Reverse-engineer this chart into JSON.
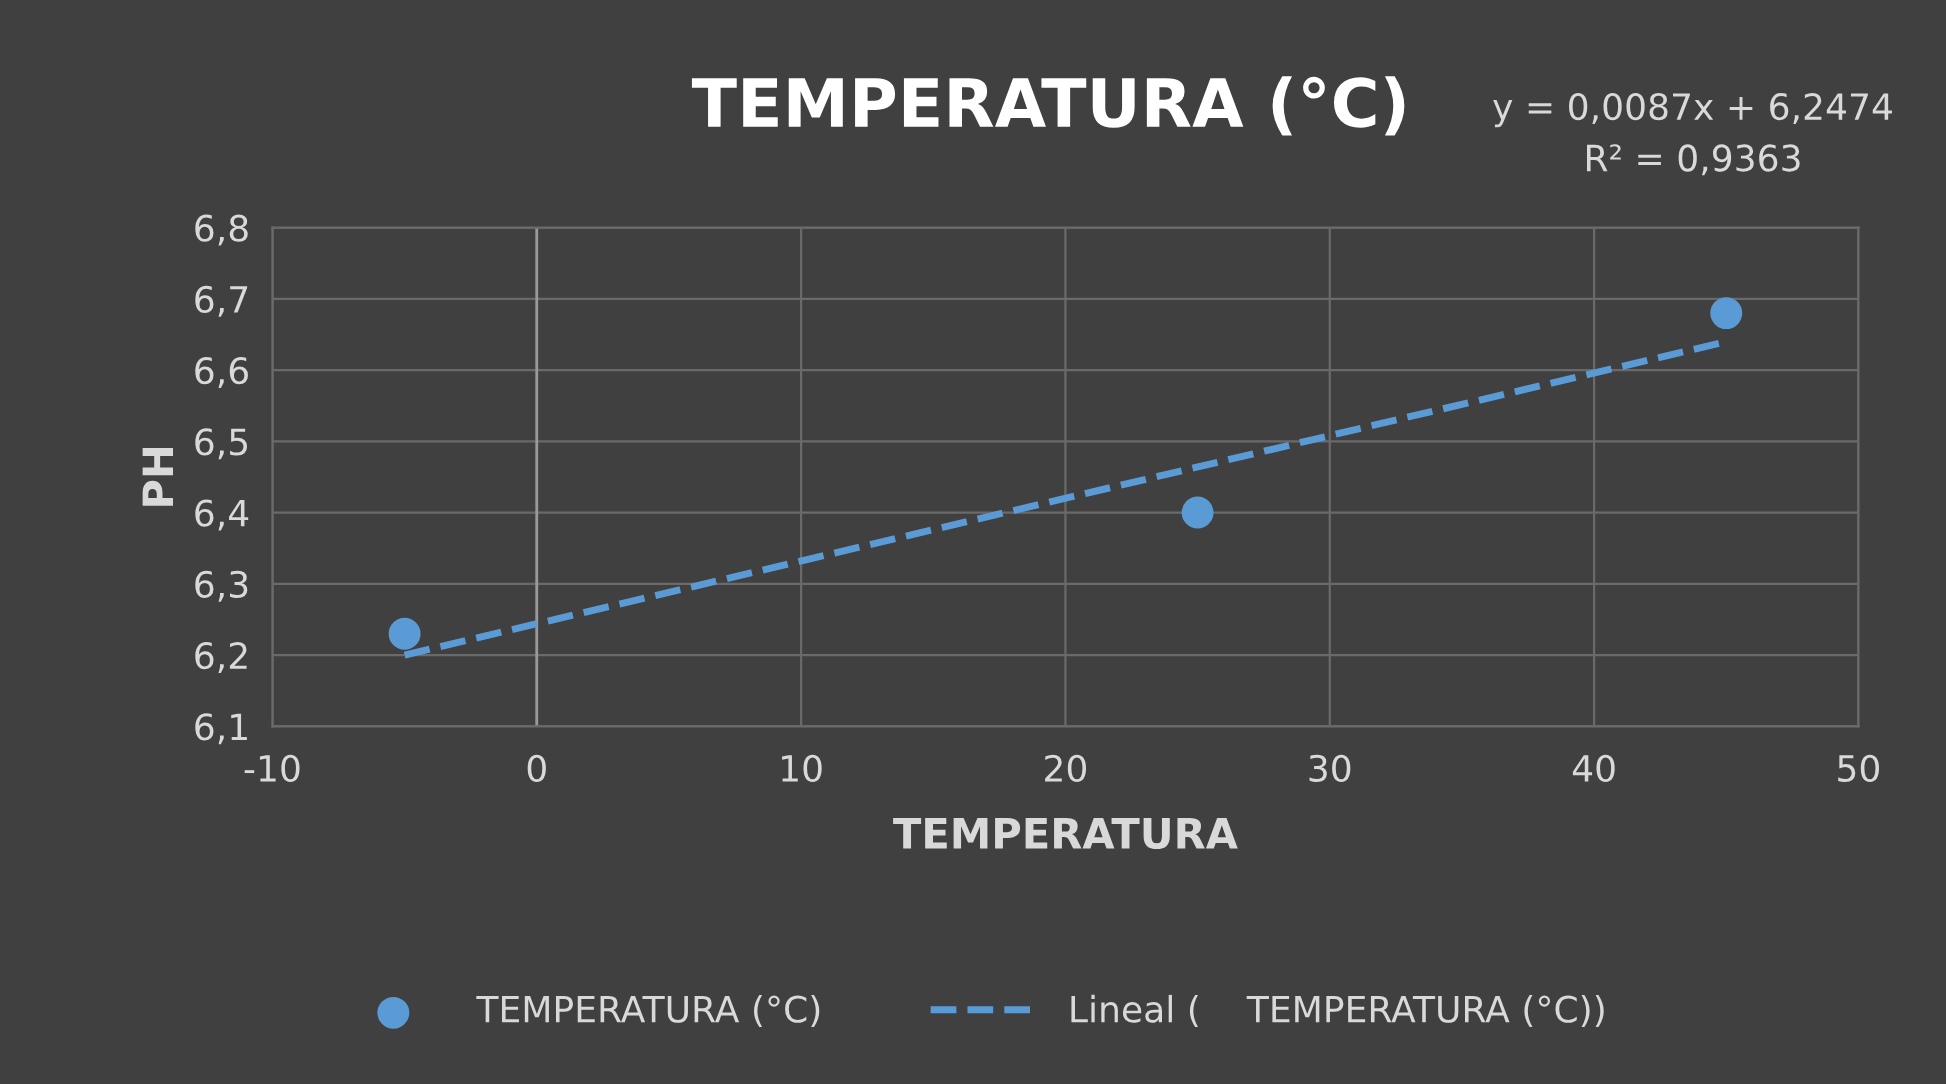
{
  "chart_data": {
    "type": "scatter",
    "title": "TEMPERATURA (°C)",
    "xlabel": "TEMPERATURA",
    "ylabel": "PH",
    "annotations": [
      "y = 0,0087x + 6,2474\nR² = 0,9363"
    ],
    "series": [
      {
        "name": "TEMPERATURA (°C)",
        "color": "#5b9bd5",
        "x": [
          -5,
          25,
          45
        ],
        "values": [
          6.23,
          6.4,
          6.68
        ],
        "marker": "circle"
      },
      {
        "name": "Lineal (    TEMPERATURA (°C))",
        "type": "line",
        "color": "#5b9bd5",
        "x": [
          -5,
          45
        ],
        "values": [
          6.2,
          6.64
        ],
        "line_style": "dashed",
        "marker": "none"
      }
    ],
    "xlim": [
      -10,
      50
    ],
    "xticks": [
      -10,
      0,
      10,
      20,
      30,
      40,
      50
    ],
    "ylim": [
      6.1,
      6.8
    ],
    "yticks": [
      {
        "value": 6.1,
        "label": "6,1"
      },
      {
        "value": 6.2,
        "label": "6,2"
      },
      {
        "value": 6.3,
        "label": "6,3"
      },
      {
        "value": 6.4,
        "label": "6,4"
      },
      {
        "value": 6.5,
        "label": "6,5"
      },
      {
        "value": 6.6,
        "label": "6,6"
      },
      {
        "value": 6.7,
        "label": "6,7"
      },
      {
        "value": 6.8,
        "label": "6,8"
      }
    ],
    "grid": true,
    "legend": "bottom"
  }
}
